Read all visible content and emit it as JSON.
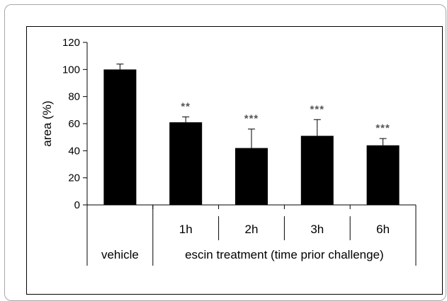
{
  "chart_data": {
    "type": "bar",
    "categories": [
      "vehicle",
      "1h",
      "2h",
      "3h",
      "6h"
    ],
    "values": [
      100,
      61,
      42,
      51,
      44
    ],
    "errors": [
      4,
      4,
      14,
      12,
      5
    ],
    "significance": [
      "",
      "**",
      "***",
      "***",
      "***"
    ],
    "ylabel": "area (%)",
    "ylim": [
      0,
      120
    ],
    "yticks": [
      0,
      20,
      40,
      60,
      80,
      100,
      120
    ],
    "group_label": "escin treatment (time prior challenge)",
    "bar_color": "#000000",
    "star_color": "#555555"
  }
}
